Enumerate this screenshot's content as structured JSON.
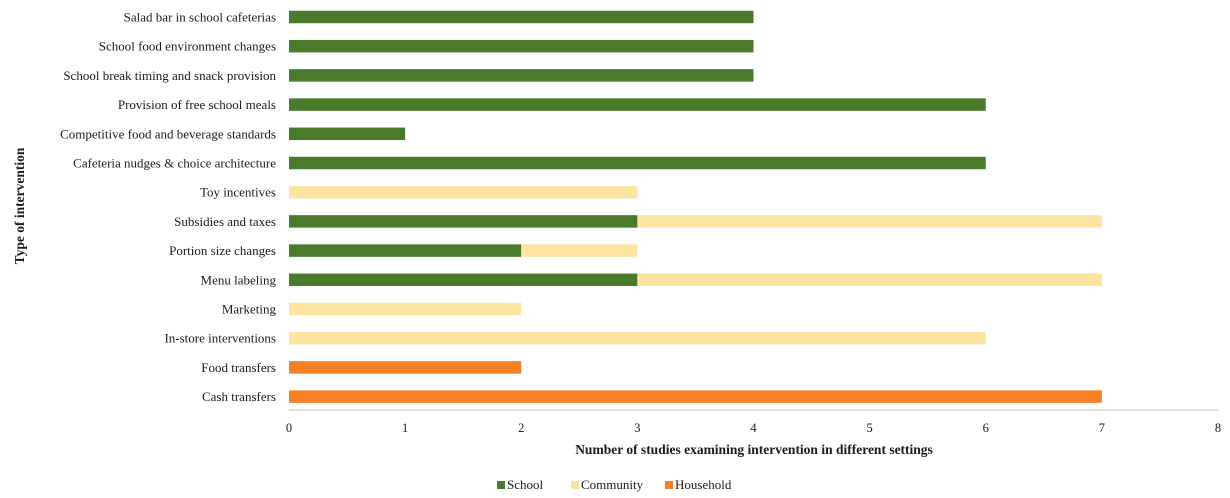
{
  "chart_data": {
    "type": "bar",
    "orientation": "horizontal",
    "stacked": true,
    "xlabel": "Number of studies examining intervention in different settings",
    "ylabel": "Type of intervention",
    "xlim": [
      0,
      8
    ],
    "xticks": [
      "0",
      "1",
      "2",
      "3",
      "4",
      "5",
      "6",
      "7",
      "8"
    ],
    "grid": false,
    "legend_position": "bottom",
    "categories": [
      "Salad bar in school cafeterias",
      "School food environment changes",
      "School break timing and snack provision",
      "Provision of free school meals",
      "Competitive food and beverage standards",
      "Cafeteria nudges & choice architecture",
      "Toy incentives",
      "Subsidies and taxes",
      "Portion size changes",
      "Menu labeling",
      "Marketing",
      "In-store interventions",
      "Food transfers",
      "Cash transfers"
    ],
    "series": [
      {
        "name": "School",
        "color": "#4a7a2b",
        "values": [
          4,
          4,
          4,
          6,
          1,
          6,
          0,
          3,
          2,
          3,
          0,
          0,
          0,
          0
        ]
      },
      {
        "name": "Community",
        "color": "#fde4a0",
        "values": [
          0,
          0,
          0,
          0,
          0,
          0,
          3,
          4,
          1,
          4,
          2,
          6,
          0,
          0
        ]
      },
      {
        "name": "Household",
        "color": "#f58025",
        "values": [
          0,
          0,
          0,
          0,
          0,
          0,
          0,
          0,
          0,
          0,
          0,
          0,
          2,
          7
        ]
      }
    ]
  }
}
